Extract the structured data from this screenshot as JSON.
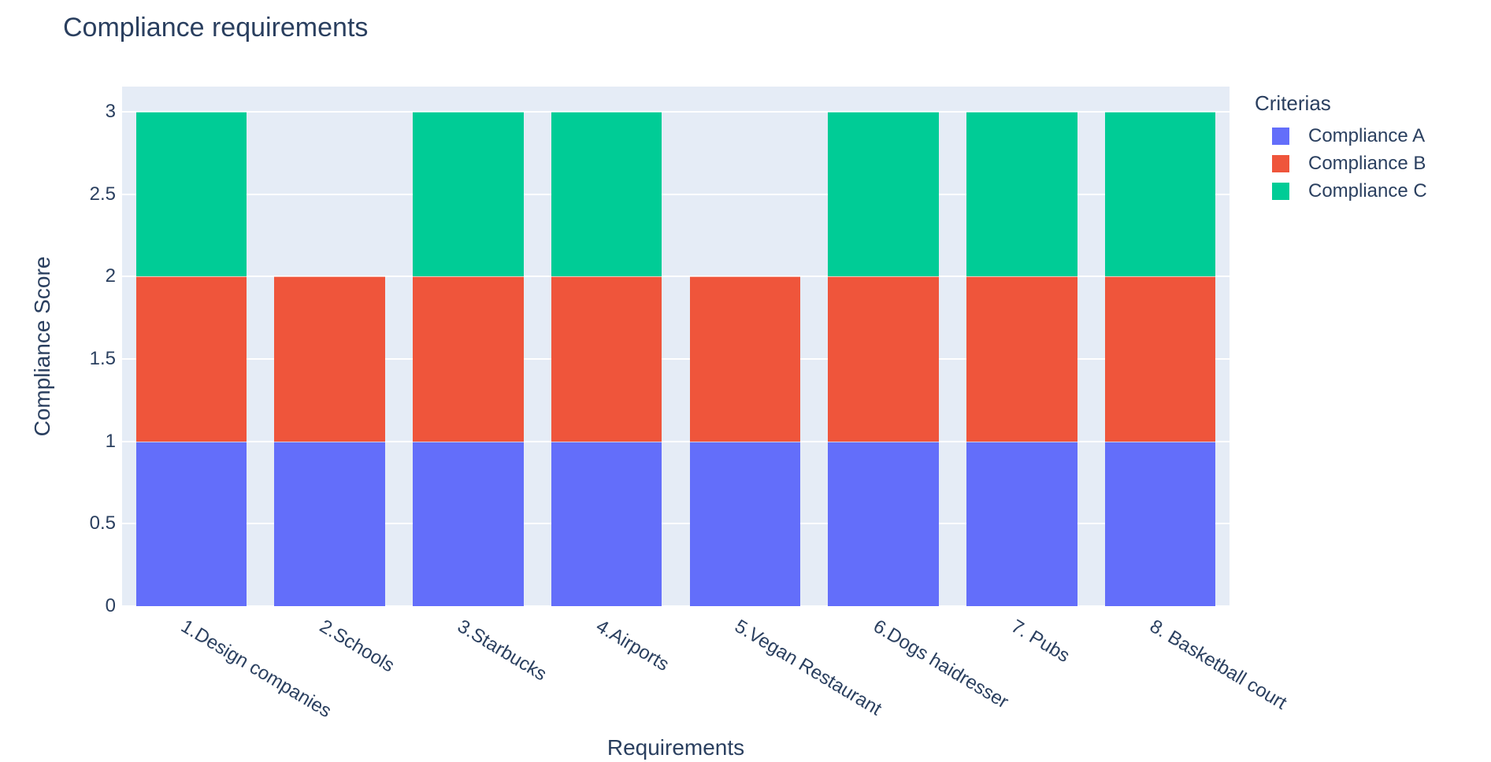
{
  "title": "Compliance requirements",
  "x_axis": {
    "title": "Requirements"
  },
  "y_axis": {
    "title": "Compliance Score",
    "tick_labels": [
      "0",
      "0.5",
      "1",
      "1.5",
      "2",
      "2.5",
      "3"
    ]
  },
  "legend": {
    "title": "Criterias",
    "items": [
      {
        "label": "Compliance A",
        "color": "#636efa"
      },
      {
        "label": "Compliance B",
        "color": "#ef553b"
      },
      {
        "label": "Compliance C",
        "color": "#00cc96"
      }
    ]
  },
  "colors": {
    "text": "#2a3f5f",
    "plot_background": "#e5ecf6",
    "gridline": "#ffffff"
  },
  "chart_data": {
    "type": "bar",
    "barmode": "stack",
    "title": "Compliance requirements",
    "xlabel": "Requirements",
    "ylabel": "Compliance Score",
    "categories": [
      "1.Design companies",
      "2.Schools",
      "3.Starbucks",
      "4.Airports",
      "5.Vegan Restaurant",
      "6.Dogs haidresser",
      "7. Pubs",
      "8. Basketball court"
    ],
    "series": [
      {
        "name": "Compliance A",
        "color": "#636efa",
        "values": [
          1,
          1,
          1,
          1,
          1,
          1,
          1,
          1
        ]
      },
      {
        "name": "Compliance B",
        "color": "#ef553b",
        "values": [
          1,
          1,
          1,
          1,
          1,
          1,
          1,
          1
        ]
      },
      {
        "name": "Compliance C",
        "color": "#00cc96",
        "values": [
          1,
          0,
          1,
          1,
          0,
          1,
          1,
          1
        ]
      }
    ],
    "yticks": [
      0,
      0.5,
      1,
      1.5,
      2,
      2.5,
      3
    ],
    "ylim": [
      0,
      3.15
    ],
    "grid": true,
    "legend_position": "right",
    "tick_angle_deg": 31
  }
}
